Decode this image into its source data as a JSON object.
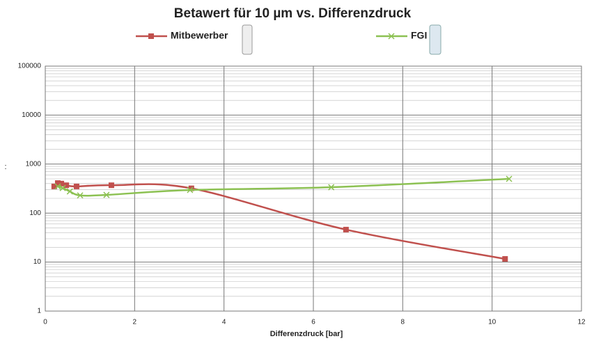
{
  "chart_data": {
    "type": "line",
    "title": "Betawert für 10 µm vs. Differenzdruck",
    "x_label": "Differenzdruck [bar]",
    "y_label": ":",
    "log_y": true,
    "grid": true,
    "xlim": [
      0,
      12
    ],
    "xticks": [
      0,
      2,
      4,
      6,
      8,
      10,
      12
    ],
    "ylim": [
      1,
      100000
    ],
    "yticks": [
      1,
      10,
      100,
      1000,
      10000,
      100000
    ],
    "series": [
      {
        "name": "Mitbewerber",
        "color": "#c0504d",
        "marker": "square",
        "x": [
          0.2,
          0.28,
          0.36,
          0.47,
          0.7,
          1.48,
          3.27,
          6.73,
          10.29
        ],
        "values": [
          350,
          410,
          400,
          370,
          350,
          370,
          320,
          46,
          11.6
        ]
      },
      {
        "name": "FGI",
        "color": "#8cc152",
        "marker": "x",
        "x": [
          0.28,
          0.39,
          0.55,
          0.78,
          1.37,
          3.24,
          6.4,
          10.38
        ],
        "values": [
          350,
          325,
          277,
          230,
          235,
          296,
          337,
          500
        ]
      }
    ]
  }
}
